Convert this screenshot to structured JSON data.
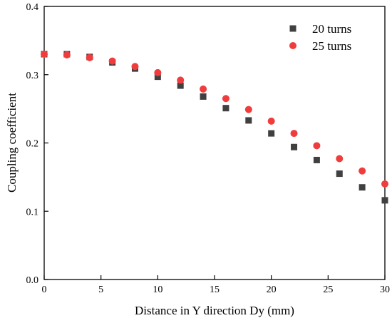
{
  "chart_data": {
    "type": "scatter",
    "title": "",
    "xlabel": "Distance in Y direction Dy (mm)",
    "ylabel": "Coupling coefficient",
    "xlim": [
      0,
      30
    ],
    "ylim": [
      0,
      0.4
    ],
    "xticks": [
      0,
      5,
      10,
      15,
      20,
      25,
      30
    ],
    "yticks": [
      0.0,
      0.1,
      0.2,
      0.3,
      0.4
    ],
    "xtick_labels": [
      "0",
      "5",
      "10",
      "15",
      "20",
      "25",
      "30"
    ],
    "ytick_labels": [
      "0.0",
      "0.1",
      "0.2",
      "0.3",
      "0.4"
    ],
    "grid": false,
    "legend_position": "top-right",
    "series": [
      {
        "name": "20 turns",
        "marker": "square",
        "color": "#404040",
        "x": [
          0,
          2,
          4,
          6,
          8,
          10,
          12,
          14,
          16,
          18,
          20,
          22,
          24,
          26,
          28,
          30
        ],
        "y": [
          0.33,
          0.33,
          0.326,
          0.318,
          0.309,
          0.297,
          0.284,
          0.268,
          0.251,
          0.233,
          0.214,
          0.194,
          0.175,
          0.155,
          0.135,
          0.116
        ]
      },
      {
        "name": "25 turns",
        "marker": "circle",
        "color": "#f03c3c",
        "x": [
          0,
          2,
          4,
          6,
          8,
          10,
          12,
          14,
          16,
          18,
          20,
          22,
          24,
          26,
          28,
          30
        ],
        "y": [
          0.33,
          0.329,
          0.325,
          0.32,
          0.312,
          0.303,
          0.292,
          0.279,
          0.265,
          0.249,
          0.232,
          0.214,
          0.196,
          0.177,
          0.159,
          0.14
        ]
      }
    ]
  }
}
